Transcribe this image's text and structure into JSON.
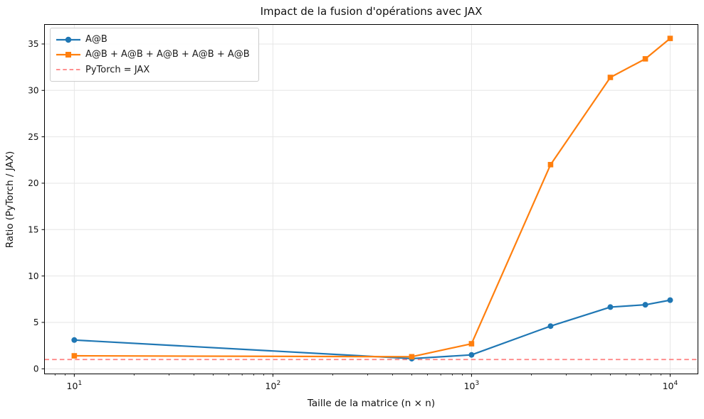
{
  "chart_data": {
    "type": "line",
    "title": "Impact de la fusion d'opérations avec JAX",
    "xlabel": "Taille de la matrice (n × n)",
    "ylabel": "Ratio (PyTorch / JAX)",
    "xscale": "log",
    "grid": true,
    "legend_position": "upper-left",
    "x": [
      10,
      500,
      1000,
      2500,
      5000,
      7500,
      10000
    ],
    "series": [
      {
        "name": "A@B",
        "color": "#1f77b4",
        "marker": "circle",
        "values": [
          3.1,
          1.1,
          1.5,
          4.6,
          6.65,
          6.9,
          7.4
        ]
      },
      {
        "name": "A@B + A@B + A@B + A@B + A@B",
        "color": "#ff7f0e",
        "marker": "square",
        "values": [
          1.4,
          1.3,
          2.7,
          22.0,
          31.4,
          33.4,
          35.6
        ]
      }
    ],
    "reference_line": {
      "label": "PyTorch = JAX",
      "y": 1.0,
      "color": "#ff8080",
      "style": "dashed"
    },
    "xticks": [
      {
        "value": 10,
        "base": "10",
        "exp": "1"
      },
      {
        "value": 100,
        "base": "10",
        "exp": "2"
      },
      {
        "value": 1000,
        "base": "10",
        "exp": "3"
      },
      {
        "value": 10000,
        "base": "10",
        "exp": "4"
      }
    ],
    "yticks": [
      0,
      5,
      10,
      15,
      20,
      25,
      30,
      35
    ],
    "xlim_log10": [
      0.85,
      4.14
    ],
    "ylim": [
      -0.55,
      37.1
    ],
    "colors": {
      "grid": "#e6e6e6",
      "spine": "#000000",
      "tick": "#000000",
      "text": "#111111"
    }
  }
}
